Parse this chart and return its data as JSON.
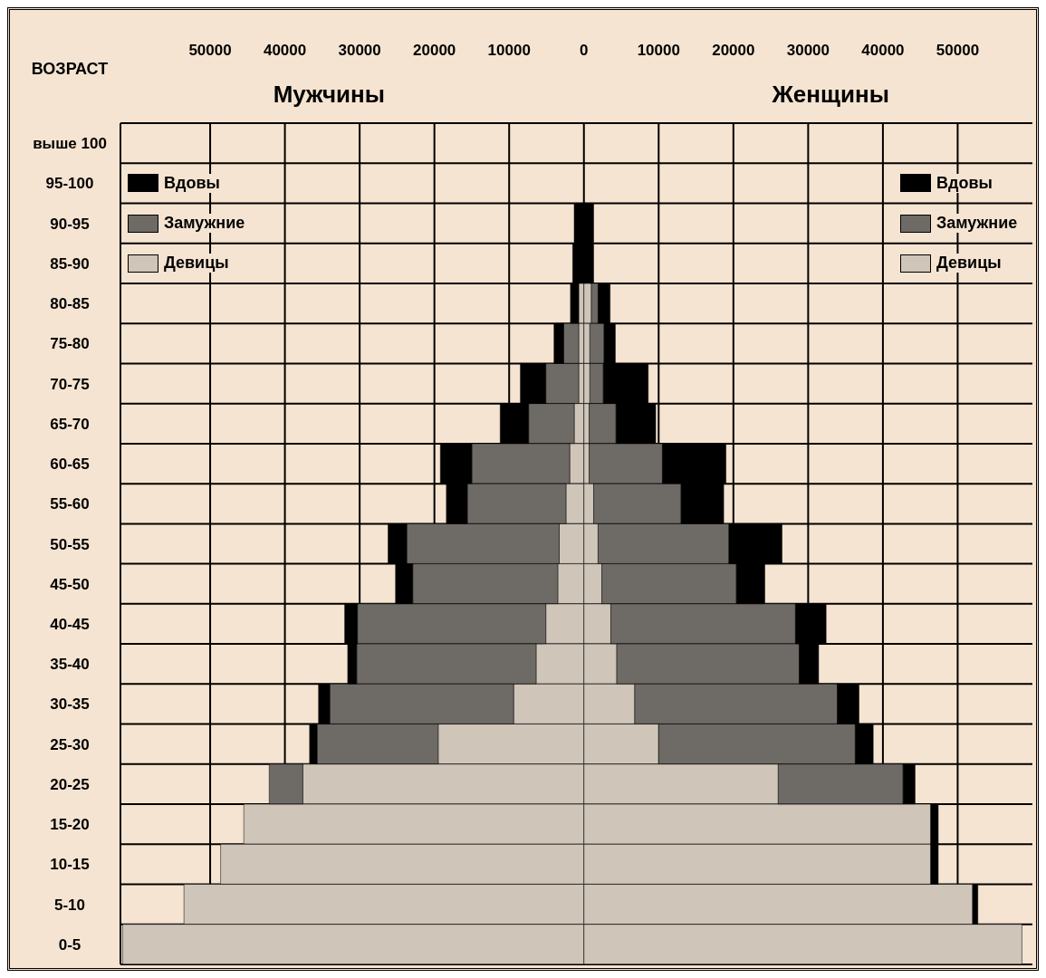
{
  "chart_data": {
    "type": "bar",
    "orientation": "horizontal",
    "stacked": true,
    "ylabel": "ВОЗРАСТ",
    "annotations": [
      "Мужчины",
      "Женщины"
    ],
    "categories": [
      "выше 100",
      "95-100",
      "90-95",
      "85-90",
      "80-85",
      "75-80",
      "70-75",
      "65-70",
      "60-65",
      "55-60",
      "50-55",
      "45-50",
      "40-45",
      "35-40",
      "30-35",
      "25-30",
      "20-25",
      "15-20",
      "10-15",
      "5-10",
      "0-5"
    ],
    "series": [
      {
        "name": "Девицы",
        "color": "#cfc5b8",
        "values": [
          0,
          0,
          0,
          0,
          -700,
          -700,
          -700,
          -1300,
          -1900,
          -2400,
          -3300,
          -3500,
          -5100,
          -6400,
          -9400,
          -19500,
          -37600,
          -45500,
          -48600,
          -53500,
          -61700
        ]
      },
      {
        "name": "Замужние",
        "color": "#6e6a66",
        "values": [
          0,
          0,
          0,
          0,
          0,
          -2000,
          -4400,
          -6100,
          -13100,
          -13200,
          -20400,
          -19400,
          -25200,
          -24000,
          -24600,
          -16200,
          -4500,
          0,
          0,
          0,
          0
        ]
      },
      {
        "name": "Вдовы",
        "color": "#000000",
        "values": [
          0,
          0,
          -1300,
          -1500,
          -1100,
          -1300,
          -3400,
          -3800,
          -4200,
          -2800,
          -2500,
          -2300,
          -1700,
          -1200,
          -1500,
          -1000,
          0,
          0,
          0,
          0,
          0
        ]
      },
      {
        "name": "Девицы",
        "color": "#cfc5b8",
        "values": [
          0,
          0,
          0,
          0,
          1000,
          800,
          800,
          700,
          700,
          1300,
          1900,
          2400,
          3600,
          4400,
          6800,
          10000,
          26000,
          46400,
          46400,
          52000,
          58600
        ]
      },
      {
        "name": "Замужние",
        "color": "#6e6a66",
        "values": [
          0,
          0,
          0,
          0,
          900,
          1900,
          1800,
          3600,
          9800,
          11700,
          17500,
          18000,
          24700,
          24400,
          27100,
          26300,
          16700,
          0,
          0,
          0,
          0
        ]
      },
      {
        "name": "Вдовы",
        "color": "#000000",
        "values": [
          0,
          0,
          1300,
          1300,
          1600,
          1500,
          6000,
          5300,
          8500,
          5700,
          7100,
          3800,
          4100,
          2600,
          2900,
          2400,
          1600,
          1000,
          1000,
          700,
          0
        ]
      }
    ],
    "xlim": [
      -62000,
      60000
    ],
    "xticks": [
      {
        "value": -50000,
        "label": "50000"
      },
      {
        "value": -40000,
        "label": "40000"
      },
      {
        "value": -30000,
        "label": "30000"
      },
      {
        "value": -20000,
        "label": "20000"
      },
      {
        "value": -10000,
        "label": "10000"
      },
      0,
      10000,
      20000,
      30000,
      40000,
      50000
    ],
    "grid": true,
    "legend": "top"
  }
}
